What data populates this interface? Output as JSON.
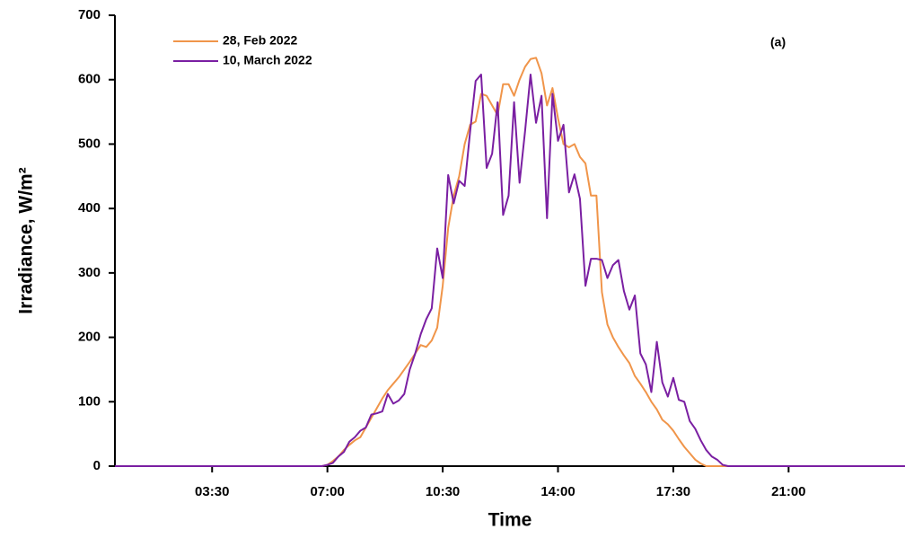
{
  "chart_data": {
    "type": "line",
    "xlabel": "Time",
    "ylabel": "Irradiance, W/m²",
    "annotation": "(a)",
    "legend": "upper left",
    "xlim": [
      33,
      1472
    ],
    "ylim": [
      0,
      700
    ],
    "xticks": [
      {
        "value": 210,
        "label": "03:30"
      },
      {
        "value": 420,
        "label": "07:00"
      },
      {
        "value": 630,
        "label": "10:30"
      },
      {
        "value": 840,
        "label": "14:00"
      },
      {
        "value": 1050,
        "label": "17:30"
      },
      {
        "value": 1260,
        "label": "21:00"
      }
    ],
    "yticks": [
      0,
      100,
      200,
      300,
      400,
      500,
      600,
      700
    ],
    "x": [
      33,
      390,
      400,
      410,
      420,
      430,
      440,
      450,
      460,
      470,
      480,
      490,
      500,
      510,
      520,
      530,
      540,
      550,
      560,
      570,
      580,
      590,
      600,
      610,
      620,
      630,
      640,
      650,
      660,
      670,
      680,
      690,
      700,
      710,
      720,
      730,
      740,
      750,
      760,
      770,
      780,
      790,
      800,
      810,
      820,
      830,
      840,
      850,
      860,
      870,
      880,
      890,
      900,
      910,
      920,
      930,
      940,
      950,
      960,
      970,
      980,
      990,
      1000,
      1010,
      1020,
      1030,
      1040,
      1050,
      1060,
      1070,
      1080,
      1090,
      1100,
      1110,
      1120,
      1130,
      1140,
      1150,
      1160,
      1170,
      1472
    ],
    "series": [
      {
        "name": "28, Feb 2022",
        "color": "#f0954a",
        "values": [
          0,
          0,
          0,
          0,
          2,
          8,
          15,
          25,
          33,
          40,
          45,
          60,
          75,
          90,
          105,
          118,
          128,
          138,
          150,
          162,
          175,
          188,
          185,
          195,
          215,
          280,
          370,
          420,
          450,
          500,
          530,
          535,
          578,
          575,
          560,
          545,
          593,
          593,
          575,
          600,
          620,
          632,
          634,
          610,
          560,
          587,
          540,
          500,
          495,
          500,
          480,
          470,
          420,
          420,
          270,
          220,
          200,
          185,
          172,
          160,
          140,
          128,
          115,
          100,
          88,
          72,
          65,
          55,
          42,
          30,
          20,
          10,
          4,
          0,
          0,
          0,
          0,
          0,
          0,
          0,
          0
        ]
      },
      {
        "name": "10, March 2022",
        "color": "#7a1fa2",
        "values": [
          0,
          0,
          0,
          0,
          2,
          5,
          15,
          22,
          38,
          45,
          55,
          60,
          80,
          82,
          85,
          112,
          97,
          102,
          112,
          150,
          175,
          205,
          228,
          245,
          338,
          292,
          452,
          408,
          443,
          435,
          520,
          598,
          608,
          463,
          485,
          565,
          390,
          420,
          565,
          440,
          520,
          608,
          533,
          575,
          385,
          578,
          505,
          530,
          425,
          453,
          415,
          280,
          322,
          322,
          320,
          292,
          312,
          320,
          272,
          243,
          265,
          175,
          158,
          115,
          193,
          130,
          108,
          137,
          103,
          100,
          70,
          58,
          40,
          25,
          15,
          10,
          2,
          0,
          0,
          0,
          0
        ]
      }
    ]
  }
}
